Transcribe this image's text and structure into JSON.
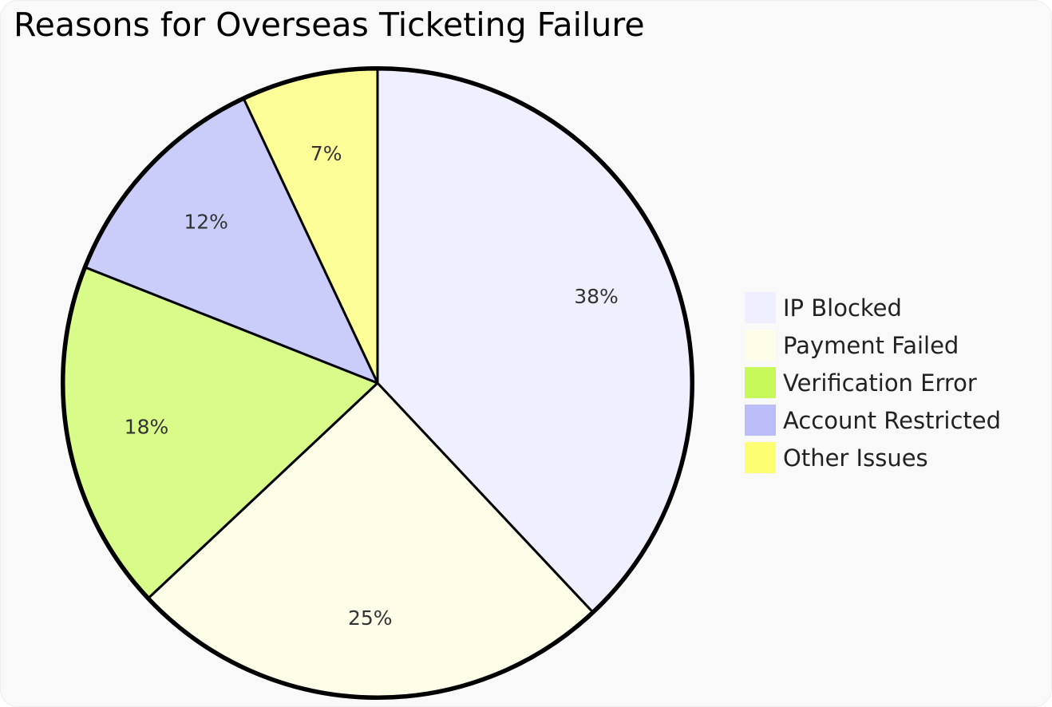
{
  "chart_data": {
    "type": "pie",
    "title": "Reasons for Overseas Ticketing Failure",
    "slices": [
      {
        "label": "IP Blocked",
        "value": 38,
        "display": "38%",
        "color": "#efefff"
      },
      {
        "label": "Payment Failed",
        "value": 25,
        "display": "25%",
        "color": "#fdfde8"
      },
      {
        "label": "Verification Error",
        "value": 18,
        "display": "18%",
        "color": "#d8fb8a"
      },
      {
        "label": "Account Restricted",
        "value": 12,
        "display": "12%",
        "color": "#cacdfa"
      },
      {
        "label": "Other Issues",
        "value": 7,
        "display": "7%",
        "color": "#fefe99"
      }
    ],
    "legend_colors": [
      "#efefff",
      "#fdfde8",
      "#c8f95a",
      "#babdf8",
      "#fefe72"
    ],
    "start": "top",
    "direction": "clockwise",
    "legend_position": "right"
  }
}
